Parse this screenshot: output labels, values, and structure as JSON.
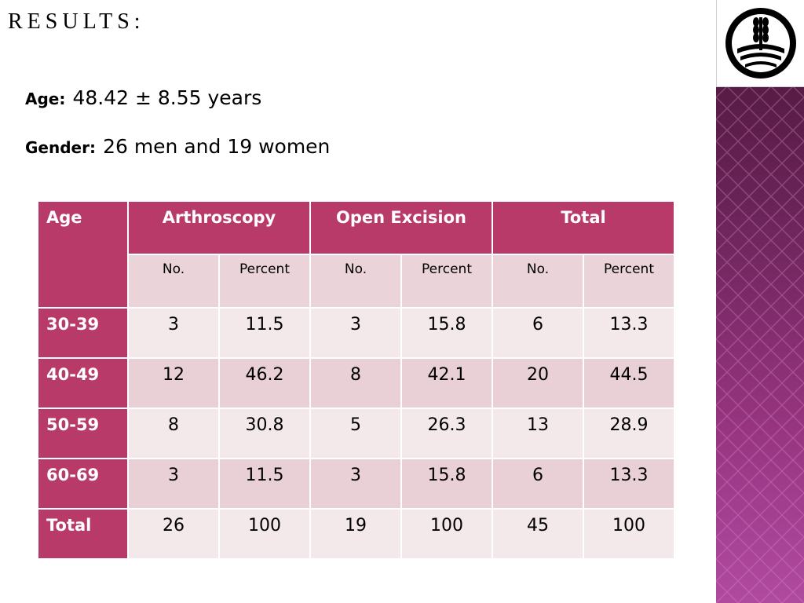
{
  "slide": {
    "title": "RESULTS:",
    "age_label": "Age:",
    "age_value": "48.42 ± 8.55 years",
    "gender_label": "Gender:",
    "gender_value": "26 men and 19 women"
  },
  "table": {
    "header": {
      "age": "Age",
      "groups": [
        "Arthroscopy",
        "Open Excision",
        "Total"
      ],
      "sub": [
        "No.",
        "Percent",
        "No.",
        "Percent",
        "No.",
        "Percent"
      ]
    },
    "rows": [
      {
        "label": "30-39",
        "cells": [
          "3",
          "11.5",
          "3",
          "15.8",
          "6",
          "13.3"
        ]
      },
      {
        "label": "40-49",
        "cells": [
          "12",
          "46.2",
          "8",
          "42.1",
          "20",
          "44.5"
        ]
      },
      {
        "label": "50-59",
        "cells": [
          "8",
          "30.8",
          "5",
          "26.3",
          "13",
          "28.9"
        ]
      },
      {
        "label": "60-69",
        "cells": [
          "3",
          "11.5",
          "3",
          "15.8",
          "6",
          "13.3"
        ]
      },
      {
        "label": "Total",
        "cells": [
          "26",
          "100",
          "19",
          "100",
          "45",
          "100"
        ]
      }
    ]
  },
  "colors": {
    "header": "#b83a68",
    "row_light": "#f3e8ea",
    "row_dark": "#e9d0d6",
    "side_bar": "#7a2a68"
  },
  "icons": {
    "logo": "wheat-emblem-logo"
  }
}
